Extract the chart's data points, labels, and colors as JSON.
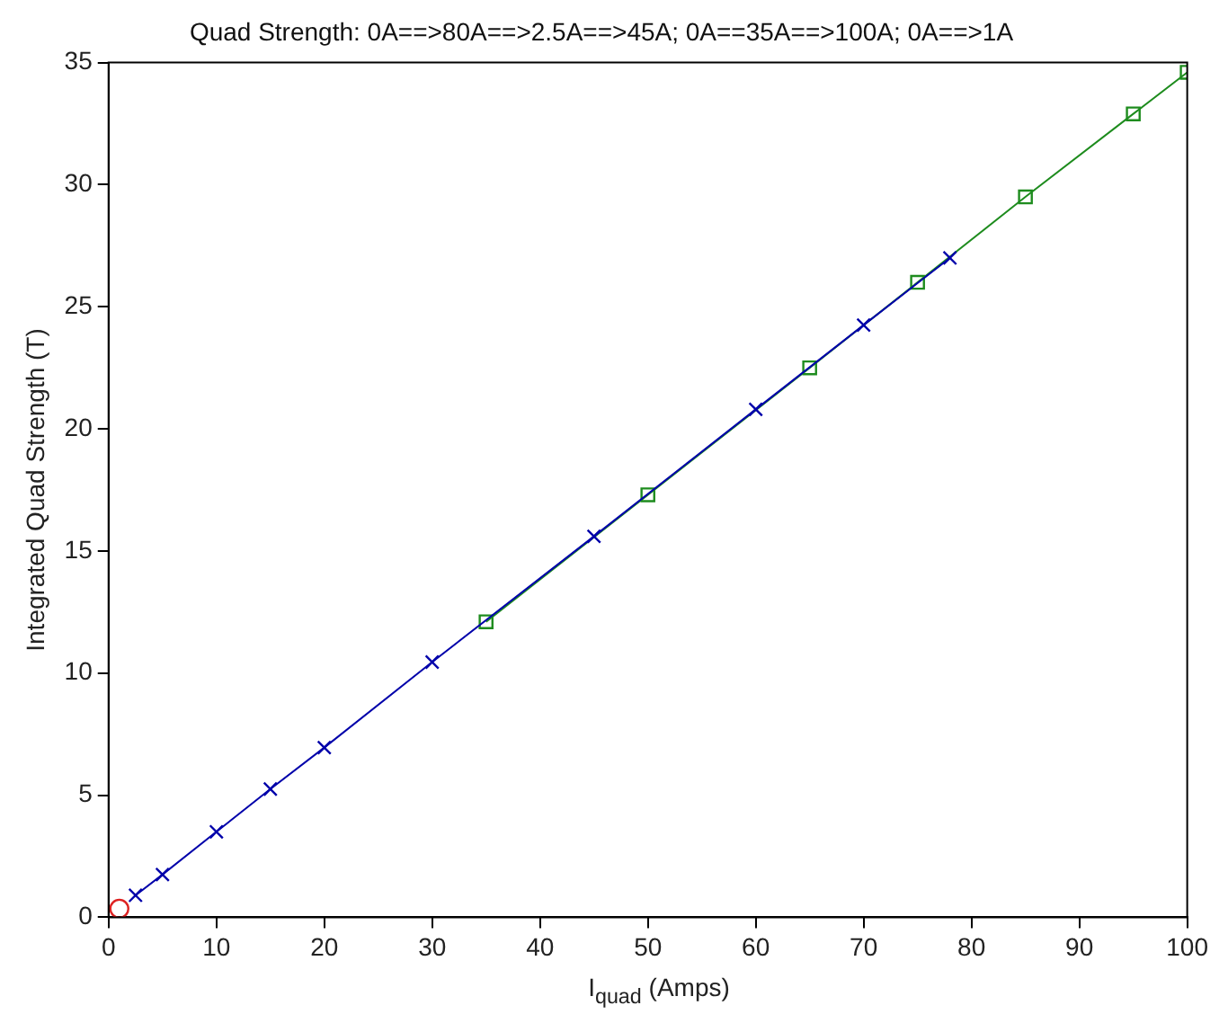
{
  "chart_data": {
    "type": "line",
    "title": "Quad Strength: 0A==>80A==>2.5A==>45A; 0A==35A==>100A; 0A==>1A",
    "xlabel": "I$_{quad}$ (Amps)",
    "ylabel": "Integrated Quad Strength (T)",
    "xlim": [
      0,
      100
    ],
    "xticks": [
      0,
      10,
      20,
      30,
      40,
      50,
      60,
      70,
      80,
      90,
      100
    ],
    "ylim": [
      0,
      35
    ],
    "yticks": [
      0,
      5,
      10,
      15,
      20,
      25,
      30,
      35
    ],
    "grid": false,
    "legend": false,
    "series": [
      {
        "color": "#0000aa",
        "marker": "cross",
        "x": [
          2.5,
          5,
          10,
          15,
          20,
          30,
          45,
          60,
          70,
          78
        ],
        "values": [
          0.9,
          1.75,
          3.5,
          5.25,
          6.95,
          10.45,
          15.6,
          20.8,
          24.25,
          27.0
        ]
      },
      {
        "color": "#1e8c1e",
        "marker": "square",
        "x": [
          35,
          50,
          65,
          75,
          85,
          95,
          100
        ],
        "values": [
          12.1,
          17.3,
          22.5,
          26.0,
          29.5,
          32.9,
          34.6
        ]
      },
      {
        "color": "#dd2222",
        "marker": "circle",
        "x": [
          1
        ],
        "values": [
          0.35
        ]
      }
    ]
  }
}
